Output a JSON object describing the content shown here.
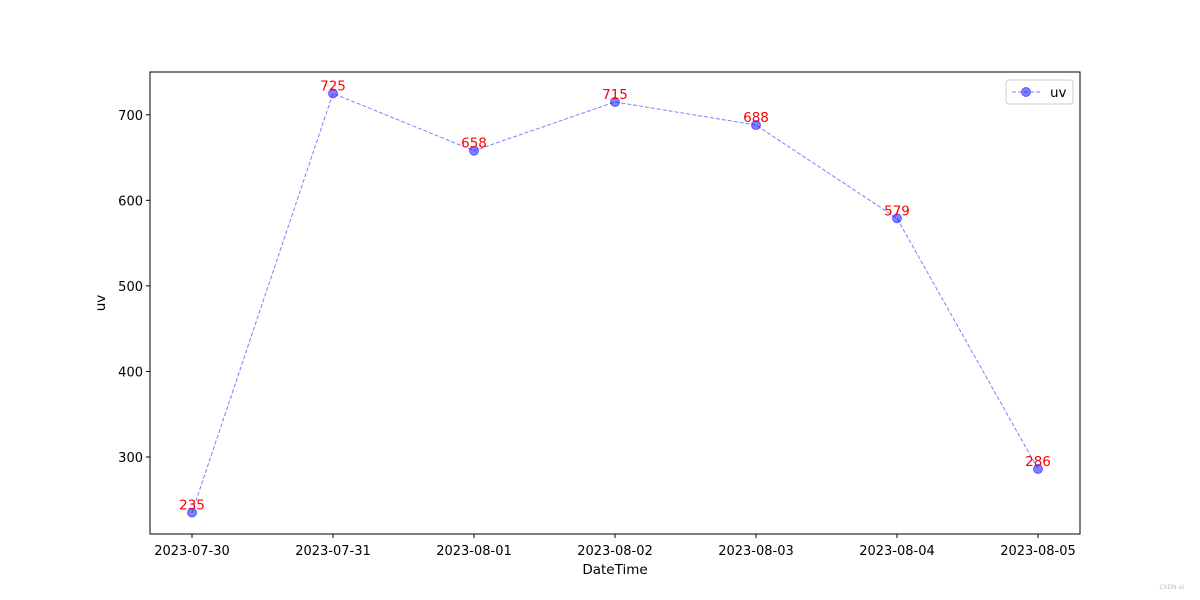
{
  "chart_data": {
    "type": "line",
    "categories": [
      "2023-07-30",
      "2023-07-31",
      "2023-08-01",
      "2023-08-02",
      "2023-08-03",
      "2023-08-04",
      "2023-08-05"
    ],
    "series": [
      {
        "name": "uv",
        "values": [
          235,
          725,
          658,
          715,
          688,
          579,
          286
        ]
      }
    ],
    "data_labels": [
      "235",
      "725",
      "658",
      "715",
      "688",
      "579",
      "286"
    ],
    "title": "",
    "xlabel": "DateTime",
    "ylabel": "uv",
    "ylim": [
      210,
      750
    ],
    "yticks": [
      300,
      400,
      500,
      600,
      700
    ],
    "grid": false,
    "legend_position": "upper right",
    "line_style": "dashed",
    "marker": "circle",
    "colors": {
      "series": "#0000ff",
      "data_label": "#ff0000"
    }
  },
  "watermark": "CSDN-ai"
}
